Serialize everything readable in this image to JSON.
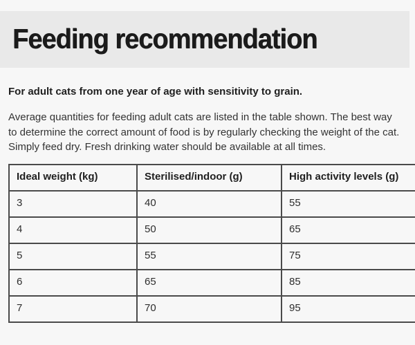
{
  "page": {
    "title": "Feeding recommendation",
    "intro_bold": "For adult cats from one year of age with sensitivity to grain.",
    "intro_text": "Average quantities for feeding adult cats are listed in the table shown. The best way to determine the correct amount of food is by regularly checking the weight of the cat. Simply feed dry. Fresh drinking water should be available at all times."
  },
  "table": {
    "headers": [
      "Ideal weight (kg)",
      "Sterilised/indoor (g)",
      "High activity levels (g)"
    ],
    "rows": [
      [
        "3",
        "40",
        "55"
      ],
      [
        "4",
        "50",
        "65"
      ],
      [
        "5",
        "55",
        "75"
      ],
      [
        "6",
        "65",
        "85"
      ],
      [
        "7",
        "70",
        "95"
      ]
    ]
  },
  "colors": {
    "page_background": "#f7f7f7",
    "band_background": "#e9e9e9",
    "table_border": "#4a4a4a",
    "heading_text": "#1b1b1b",
    "body_text": "#333333"
  }
}
